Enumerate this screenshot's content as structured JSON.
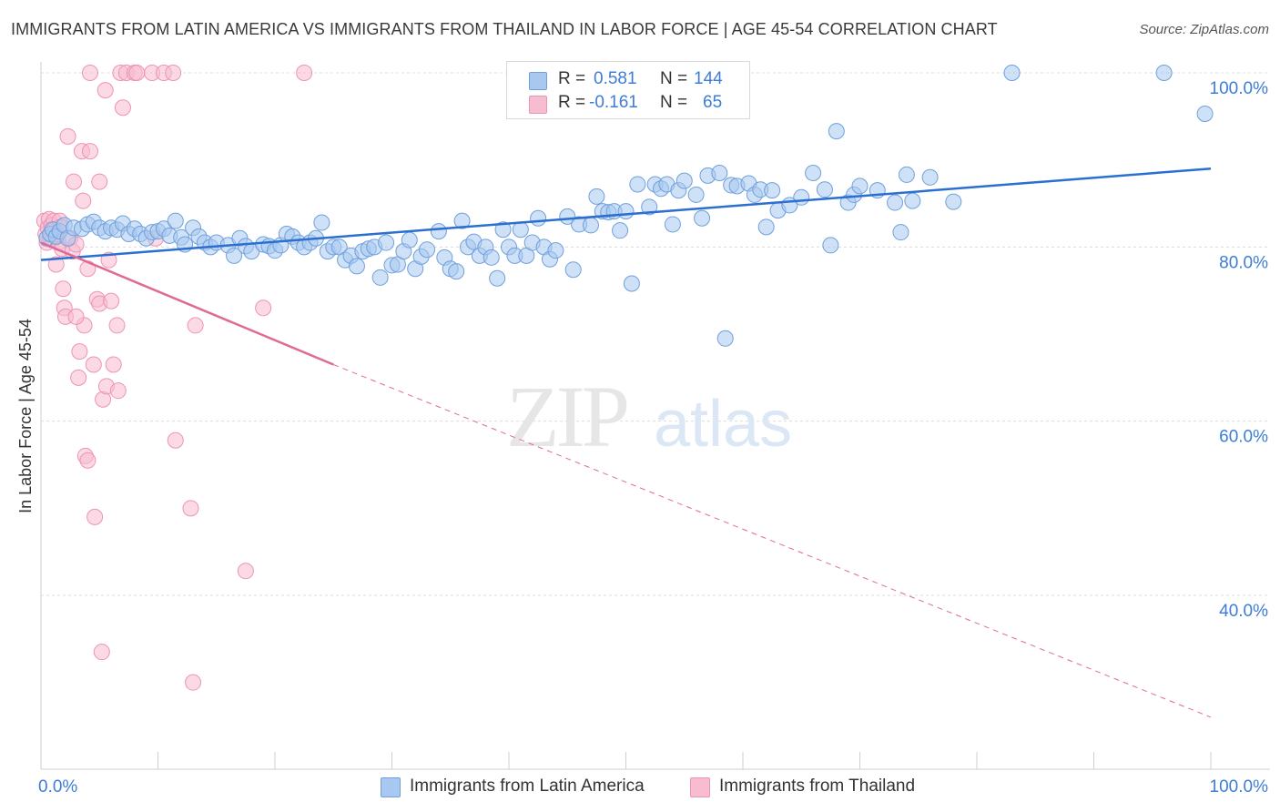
{
  "title": "IMMIGRANTS FROM LATIN AMERICA VS IMMIGRANTS FROM THAILAND IN LABOR FORCE | AGE 45-54 CORRELATION CHART",
  "source": "Source: ZipAtlas.com",
  "watermark": {
    "zip": "ZIP",
    "atlas": "atlas"
  },
  "legend": {
    "rows": [
      {
        "r_label": "R =",
        "r_value": "0.581",
        "n_label": "N =",
        "n_value": "144",
        "color": "#a8c8f0"
      },
      {
        "r_label": "R =",
        "r_value": "-0.161",
        "n_label": "N =",
        "n_value": "65",
        "color": "#f8bcd0"
      }
    ]
  },
  "bottom_legend": {
    "series_a": "Immigrants from Latin America",
    "series_b": "Immigrants from Thailand"
  },
  "colors": {
    "blue_fill": "#a8c8f0",
    "blue_stroke": "#6fa0dc",
    "blue_line": "#2a6fd1",
    "pink_fill": "#f8bcd0",
    "pink_stroke": "#ee93b2",
    "pink_line": "#e06a96",
    "axis_text": "#3d7dd8",
    "grid": "#dcdcdc"
  },
  "chart_data": {
    "type": "scatter",
    "title": "IMMIGRANTS FROM LATIN AMERICA VS IMMIGRANTS FROM THAILAND IN LABOR FORCE | AGE 45-54 CORRELATION CHART",
    "xlabel": "",
    "ylabel": "In Labor Force | Age 45-54",
    "xlim": [
      0,
      100
    ],
    "ylim": [
      20.5,
      101.5
    ],
    "x_tick_labels": [
      "0.0%",
      "100.0%"
    ],
    "y_ticks": [
      100,
      80,
      60,
      40
    ],
    "y_tick_labels": [
      "100.0%",
      "80.0%",
      "60.0%",
      "40.0%"
    ],
    "grid": true,
    "series": [
      {
        "name": "Immigrants from Latin America",
        "trend": {
          "x": [
            0,
            100
          ],
          "y": [
            78.5,
            89.0
          ],
          "style": "solid"
        },
        "points": [
          [
            0.5,
            81
          ],
          [
            0.8,
            81.5
          ],
          [
            1,
            82
          ],
          [
            1.3,
            81.2
          ],
          [
            1.6,
            81.8
          ],
          [
            2,
            82.5
          ],
          [
            2.3,
            81
          ],
          [
            2.8,
            82.2
          ],
          [
            3.5,
            82.1
          ],
          [
            4,
            82.6
          ],
          [
            4.5,
            82.9
          ],
          [
            5,
            82.2
          ],
          [
            5.5,
            81.8
          ],
          [
            6,
            82.2
          ],
          [
            6.5,
            82
          ],
          [
            7,
            82.7
          ],
          [
            7.5,
            81.5
          ],
          [
            8,
            82.1
          ],
          [
            8.5,
            81.5
          ],
          [
            9,
            81
          ],
          [
            9.5,
            81.7
          ],
          [
            10,
            81.8
          ],
          [
            10.5,
            82.1
          ],
          [
            11,
            81.3
          ],
          [
            11.5,
            83
          ],
          [
            12,
            81.1
          ],
          [
            12.3,
            80.3
          ],
          [
            13,
            82.2
          ],
          [
            13.5,
            81.2
          ],
          [
            14,
            80.5
          ],
          [
            14.5,
            80
          ],
          [
            15,
            80.5
          ],
          [
            16,
            80.2
          ],
          [
            16.5,
            79
          ],
          [
            17,
            81
          ],
          [
            17.5,
            80.1
          ],
          [
            18,
            79.5
          ],
          [
            19,
            80.3
          ],
          [
            19.5,
            80.1
          ],
          [
            20,
            79.6
          ],
          [
            20.5,
            80.2
          ],
          [
            21,
            81.5
          ],
          [
            21.5,
            81.2
          ],
          [
            22,
            80.5
          ],
          [
            22.5,
            80
          ],
          [
            23,
            80.5
          ],
          [
            23.5,
            81
          ],
          [
            24,
            82.8
          ],
          [
            24.5,
            79.5
          ],
          [
            25,
            80
          ],
          [
            25.5,
            80
          ],
          [
            26,
            78.5
          ],
          [
            26.5,
            79
          ],
          [
            27,
            77.8
          ],
          [
            27.5,
            79.5
          ],
          [
            28,
            79.8
          ],
          [
            28.5,
            80
          ],
          [
            29,
            76.5
          ],
          [
            29.5,
            80.5
          ],
          [
            30,
            77.9
          ],
          [
            30.5,
            78
          ],
          [
            31,
            79.5
          ],
          [
            31.5,
            80.8
          ],
          [
            32,
            77.5
          ],
          [
            32.5,
            78.9
          ],
          [
            33,
            79.7
          ],
          [
            34,
            81.8
          ],
          [
            34.5,
            78.8
          ],
          [
            35,
            77.5
          ],
          [
            35.5,
            77.2
          ],
          [
            36,
            83
          ],
          [
            36.5,
            80
          ],
          [
            37,
            80.6
          ],
          [
            37.5,
            79
          ],
          [
            38,
            80
          ],
          [
            38.5,
            78.8
          ],
          [
            39,
            76.4
          ],
          [
            39.5,
            82
          ],
          [
            40,
            80
          ],
          [
            40.5,
            79
          ],
          [
            41,
            82
          ],
          [
            41.5,
            79
          ],
          [
            42,
            80.5
          ],
          [
            42.5,
            83.3
          ],
          [
            43,
            80
          ],
          [
            43.5,
            78.6
          ],
          [
            44,
            79.6
          ],
          [
            45,
            83.5
          ],
          [
            45.5,
            77.4
          ],
          [
            46,
            82.6
          ],
          [
            47,
            82.5
          ],
          [
            47.5,
            85.8
          ],
          [
            48,
            84.1
          ],
          [
            48.5,
            84
          ],
          [
            49,
            84.1
          ],
          [
            49.5,
            81.9
          ],
          [
            50,
            84.1
          ],
          [
            50.5,
            75.8
          ],
          [
            51,
            87.2
          ],
          [
            52,
            84.6
          ],
          [
            52.5,
            87.2
          ],
          [
            53,
            86.7
          ],
          [
            53.5,
            87.2
          ],
          [
            54,
            82.6
          ],
          [
            54.5,
            86.5
          ],
          [
            55,
            87.6
          ],
          [
            56,
            86
          ],
          [
            56.5,
            83.3
          ],
          [
            57,
            88.2
          ],
          [
            58,
            88.5
          ],
          [
            58.5,
            69.5
          ],
          [
            59,
            87.1
          ],
          [
            59.5,
            87
          ],
          [
            60.5,
            87.3
          ],
          [
            61,
            86
          ],
          [
            61.5,
            86.6
          ],
          [
            62,
            82.3
          ],
          [
            62.5,
            86.5
          ],
          [
            63,
            84.2
          ],
          [
            64,
            84.8
          ],
          [
            65,
            85.7
          ],
          [
            66,
            88.5
          ],
          [
            67,
            86.6
          ],
          [
            67.5,
            80.2
          ],
          [
            68,
            93.3
          ],
          [
            69,
            85.1
          ],
          [
            69.5,
            86
          ],
          [
            70,
            87
          ],
          [
            71.5,
            86.5
          ],
          [
            73,
            85.1
          ],
          [
            73.5,
            81.7
          ],
          [
            74,
            88.3
          ],
          [
            74.5,
            85.3
          ],
          [
            76,
            88
          ],
          [
            78,
            85.2
          ],
          [
            83,
            100
          ],
          [
            96,
            100
          ],
          [
            99.5,
            95.3
          ]
        ]
      },
      {
        "name": "Immigrants from Thailand",
        "trend": {
          "x": [
            0,
            25,
            100
          ],
          "y": [
            80.5,
            66.5,
            26
          ],
          "style": "solid-then-dashed"
        },
        "points": [
          [
            0.3,
            83
          ],
          [
            0.4,
            81.5
          ],
          [
            0.5,
            80.5
          ],
          [
            0.6,
            82.2
          ],
          [
            0.7,
            83.2
          ],
          [
            0.8,
            81
          ],
          [
            0.9,
            82.5
          ],
          [
            1,
            80.8
          ],
          [
            1.1,
            83
          ],
          [
            1.2,
            82
          ],
          [
            1.3,
            78
          ],
          [
            1.4,
            81.5
          ],
          [
            1.5,
            80.5
          ],
          [
            1.6,
            83
          ],
          [
            1.7,
            82.3
          ],
          [
            1.8,
            79.8
          ],
          [
            1.9,
            75.2
          ],
          [
            2,
            73
          ],
          [
            2.1,
            72
          ],
          [
            2.3,
            92.7
          ],
          [
            2.5,
            81
          ],
          [
            2.7,
            79.5
          ],
          [
            2.8,
            87.5
          ],
          [
            3,
            80.3
          ],
          [
            3.2,
            65
          ],
          [
            3.3,
            68
          ],
          [
            3.5,
            91
          ],
          [
            3.6,
            85.3
          ],
          [
            3.7,
            71
          ],
          [
            3.8,
            56
          ],
          [
            4,
            77.5
          ],
          [
            4,
            55.5
          ],
          [
            4.2,
            91
          ],
          [
            4.5,
            66.5
          ],
          [
            4.6,
            49
          ],
          [
            4.8,
            74
          ],
          [
            5,
            73.5
          ],
          [
            5,
            87.5
          ],
          [
            5.2,
            33.5
          ],
          [
            5.3,
            62.5
          ],
          [
            5.5,
            98
          ],
          [
            5.6,
            64
          ],
          [
            5.8,
            78.5
          ],
          [
            6,
            73.8
          ],
          [
            6.2,
            66.5
          ],
          [
            6.5,
            71
          ],
          [
            6.6,
            63.5
          ],
          [
            6.8,
            100
          ],
          [
            7,
            96
          ],
          [
            7.3,
            100
          ],
          [
            8,
            100
          ],
          [
            8.2,
            100
          ],
          [
            9.5,
            100
          ],
          [
            9.8,
            81
          ],
          [
            11.5,
            57.8
          ],
          [
            12.8,
            50
          ],
          [
            13,
            30
          ],
          [
            13.2,
            71
          ],
          [
            17.5,
            42.8
          ],
          [
            19,
            73
          ],
          [
            22.5,
            100
          ],
          [
            4.2,
            100
          ],
          [
            10.5,
            100
          ],
          [
            11.3,
            100
          ],
          [
            3,
            72
          ]
        ]
      }
    ]
  }
}
